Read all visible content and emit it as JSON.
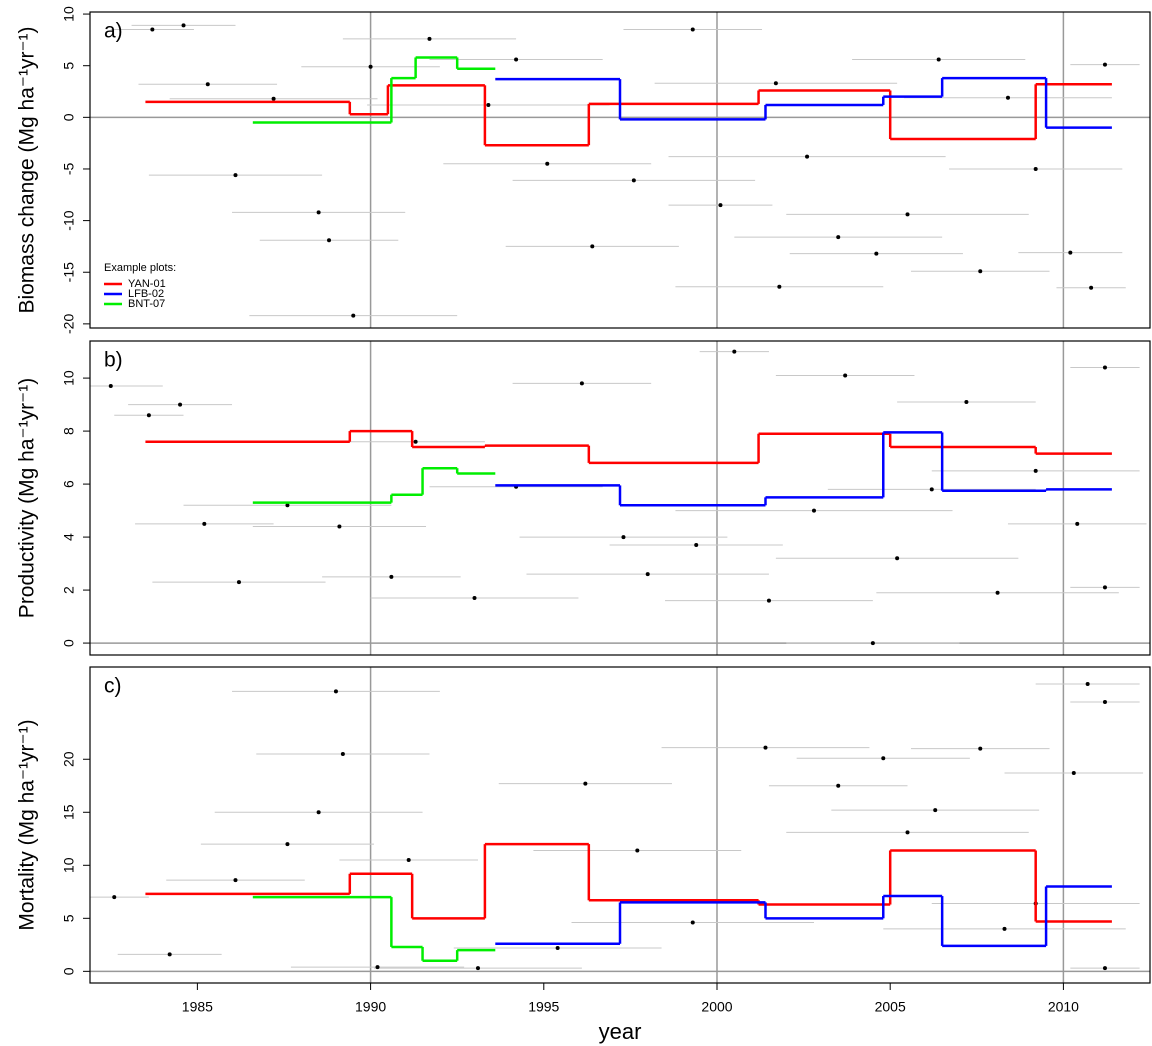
{
  "chart_data": [
    {
      "type": "line",
      "title": "a)",
      "ylabel": "Biomass change (Mg ha⁻¹yr⁻¹)",
      "xlim": [
        1981.9,
        2012.5
      ],
      "ylim": [
        -20.4,
        10.2
      ],
      "yticks": [
        10,
        5,
        0,
        -5,
        -10,
        -15,
        -20
      ],
      "vlines": [
        1990,
        2000,
        2010
      ],
      "hline": 0,
      "legend_title": "Example plots:",
      "legend": "lower left",
      "series": [
        {
          "name": "YAN-01",
          "color": "#ff0000",
          "x": [
            1983.5,
            1989.4,
            1990.5,
            1993.3,
            1996.3,
            2001.2,
            2005.0,
            2009.2
          ],
          "x_end": [
            1989.4,
            1990.5,
            1993.3,
            1996.3,
            2001.2,
            2005.0,
            2009.2,
            2011.4
          ],
          "values": [
            1.5,
            0.3,
            3.1,
            -2.7,
            1.3,
            2.6,
            -2.1,
            3.2
          ]
        },
        {
          "name": "LFB-02",
          "color": "#0000ff",
          "x": [
            1993.6,
            1997.2,
            2001.4,
            2004.8,
            2006.5,
            2009.5
          ],
          "x_end": [
            1997.2,
            2001.4,
            2004.8,
            2006.5,
            2009.5,
            2011.4
          ],
          "values": [
            3.7,
            -0.2,
            1.2,
            2.0,
            3.8,
            -1.0
          ]
        },
        {
          "name": "BNT-07",
          "color": "#00ee00",
          "x": [
            1986.6,
            1990.6,
            1991.3,
            1992.5
          ],
          "x_end": [
            1990.6,
            1991.3,
            1992.5,
            1993.6
          ],
          "values": [
            -0.5,
            3.8,
            5.8,
            4.7
          ]
        }
      ],
      "points": {
        "x": [
          1983.7,
          1984.6,
          1985.3,
          1986.1,
          1987.2,
          1988.5,
          1988.8,
          1989.5,
          1990.0,
          1991.7,
          1993.4,
          1995.1,
          1996.4,
          1997.6,
          1999.3,
          2000.1,
          2001.7,
          2002.6,
          2003.5,
          2004.6,
          2005.5,
          2006.4,
          2007.6,
          2008.4,
          2009.2,
          2010.2,
          2010.8,
          2011.2,
          2001.8,
          1994.2
        ],
        "values": [
          8.5,
          8.9,
          3.2,
          -5.6,
          1.8,
          -9.2,
          -11.9,
          -19.2,
          4.9,
          7.6,
          1.2,
          -4.5,
          -12.5,
          -6.1,
          8.5,
          -8.5,
          3.3,
          -3.8,
          -11.6,
          -13.2,
          -9.4,
          5.6,
          -14.9,
          1.9,
          -5.0,
          -13.1,
          -16.5,
          5.1,
          -16.4,
          5.6
        ],
        "xerr": [
          1.2,
          1.5,
          2.0,
          2.5,
          3.0,
          2.5,
          2.0,
          3.0,
          2.0,
          2.5,
          3.5,
          3.0,
          2.5,
          3.5,
          2.0,
          1.5,
          3.5,
          4.0,
          3.0,
          2.5,
          3.5,
          2.5,
          2.0,
          3.0,
          2.5,
          1.5,
          1.0,
          1.0,
          3.0,
          2.5
        ]
      }
    },
    {
      "type": "line",
      "title": "b)",
      "ylabel": "Productivity (Mg ha⁻¹yr⁻¹)",
      "xlim": [
        1981.9,
        2012.5
      ],
      "ylim": [
        -0.45,
        11.4
      ],
      "yticks": [
        10,
        8,
        6,
        4,
        2,
        0
      ],
      "vlines": [
        1990,
        2000,
        2010
      ],
      "hline": 0,
      "series": [
        {
          "color": "#ff0000",
          "x": [
            1983.5,
            1989.4,
            1991.2,
            1993.3,
            1996.3,
            2001.2,
            2005.0,
            2009.2
          ],
          "x_end": [
            1989.4,
            1991.2,
            1993.3,
            1996.3,
            2001.2,
            2005.0,
            2009.2,
            2011.4
          ],
          "values": [
            7.6,
            8.0,
            7.4,
            7.45,
            6.8,
            7.9,
            7.4,
            7.15
          ]
        },
        {
          "color": "#0000ff",
          "x": [
            1993.6,
            1997.2,
            2001.4,
            2004.8,
            2006.5,
            2009.5
          ],
          "x_end": [
            1997.2,
            2001.4,
            2004.8,
            2006.5,
            2009.5,
            2011.4
          ],
          "values": [
            5.95,
            5.2,
            5.5,
            7.95,
            5.75,
            5.8
          ]
        },
        {
          "color": "#00ee00",
          "x": [
            1986.6,
            1990.6,
            1991.5,
            1992.5
          ],
          "x_end": [
            1990.6,
            1991.5,
            1992.5,
            1993.6
          ],
          "values": [
            5.3,
            5.6,
            6.6,
            6.4
          ]
        }
      ],
      "points": {
        "x": [
          1982.5,
          1983.6,
          1984.5,
          1985.2,
          1986.2,
          1987.6,
          1989.1,
          1990.6,
          1991.3,
          1993.0,
          1994.2,
          1996.1,
          1998.0,
          1999.4,
          2000.5,
          2001.5,
          2002.8,
          2003.7,
          2004.5,
          2005.2,
          2006.2,
          2007.2,
          2008.1,
          2009.2,
          2010.4,
          2011.2,
          2011.2,
          1997.3
        ],
        "values": [
          9.7,
          8.6,
          9.0,
          4.5,
          2.3,
          5.2,
          4.4,
          2.5,
          7.6,
          1.7,
          5.9,
          9.8,
          2.6,
          3.7,
          11.0,
          1.6,
          5.0,
          10.1,
          0.0,
          3.2,
          5.8,
          9.1,
          1.9,
          6.5,
          4.5,
          10.4,
          2.1,
          4.0
        ],
        "xerr": [
          1.5,
          1.0,
          1.5,
          2.0,
          2.5,
          3.0,
          2.5,
          2.0,
          2.0,
          3.0,
          2.5,
          2.0,
          3.5,
          2.5,
          1.0,
          3.0,
          4.0,
          2.0,
          2.5,
          3.5,
          3.0,
          2.0,
          3.5,
          3.0,
          2.0,
          1.0,
          1.0,
          3.0
        ]
      }
    },
    {
      "type": "line",
      "title": "c)",
      "ylabel": "Mortality (Mg ha⁻¹yr⁻¹)",
      "xlabel": "year",
      "xlim": [
        1981.9,
        2012.5
      ],
      "ylim": [
        -1.1,
        28.7
      ],
      "yticks": [
        20,
        15,
        10,
        5,
        0
      ],
      "xticks": [
        1985,
        1990,
        1995,
        2000,
        2005,
        2010
      ],
      "vlines": [
        1990,
        2000,
        2010
      ],
      "hline": 0,
      "series": [
        {
          "color": "#ff0000",
          "x": [
            1983.5,
            1989.4,
            1991.2,
            1993.3,
            1996.3,
            2001.2,
            2005.0,
            2009.2
          ],
          "x_end": [
            1989.4,
            1991.2,
            1993.3,
            1996.3,
            2001.2,
            2005.0,
            2009.2,
            2011.4
          ],
          "values": [
            7.3,
            9.2,
            5.0,
            12.0,
            6.7,
            6.3,
            11.4,
            4.7
          ]
        },
        {
          "color": "#0000ff",
          "x": [
            1993.6,
            1997.2,
            2001.4,
            2004.8,
            2006.5,
            2009.5
          ],
          "x_end": [
            1997.2,
            2001.4,
            2004.8,
            2006.5,
            2009.5,
            2011.4
          ],
          "values": [
            2.6,
            6.5,
            5.0,
            7.1,
            2.4,
            8.0
          ]
        },
        {
          "color": "#00ee00",
          "x": [
            1986.6,
            1990.6,
            1991.5,
            1992.5
          ],
          "x_end": [
            1990.6,
            1991.5,
            1992.5,
            1993.6
          ],
          "values": [
            7.0,
            2.3,
            1.0,
            2.0
          ]
        }
      ],
      "points": {
        "x": [
          1982.6,
          1984.2,
          1986.1,
          1987.6,
          1988.5,
          1989.0,
          1989.2,
          1990.2,
          1991.1,
          1993.1,
          1996.2,
          1997.7,
          1999.3,
          2001.4,
          2003.5,
          2004.8,
          2005.5,
          2006.3,
          2007.6,
          2008.3,
          2009.2,
          2010.3,
          2010.7,
          2011.2,
          2011.2,
          1995.4
        ],
        "values": [
          7.0,
          1.6,
          8.6,
          12.0,
          15.0,
          26.4,
          20.5,
          0.4,
          10.5,
          0.3,
          17.7,
          11.4,
          4.6,
          21.1,
          17.5,
          20.1,
          13.1,
          15.2,
          21.0,
          4.0,
          6.4,
          18.7,
          27.1,
          25.4,
          0.3,
          2.2
        ],
        "xerr": [
          1.0,
          1.5,
          2.0,
          2.5,
          3.0,
          3.0,
          2.5,
          2.5,
          2.0,
          3.0,
          2.5,
          3.0,
          3.5,
          3.0,
          2.0,
          2.5,
          3.5,
          3.0,
          2.0,
          3.5,
          3.0,
          2.0,
          1.5,
          1.0,
          1.0,
          3.0
        ]
      }
    }
  ]
}
